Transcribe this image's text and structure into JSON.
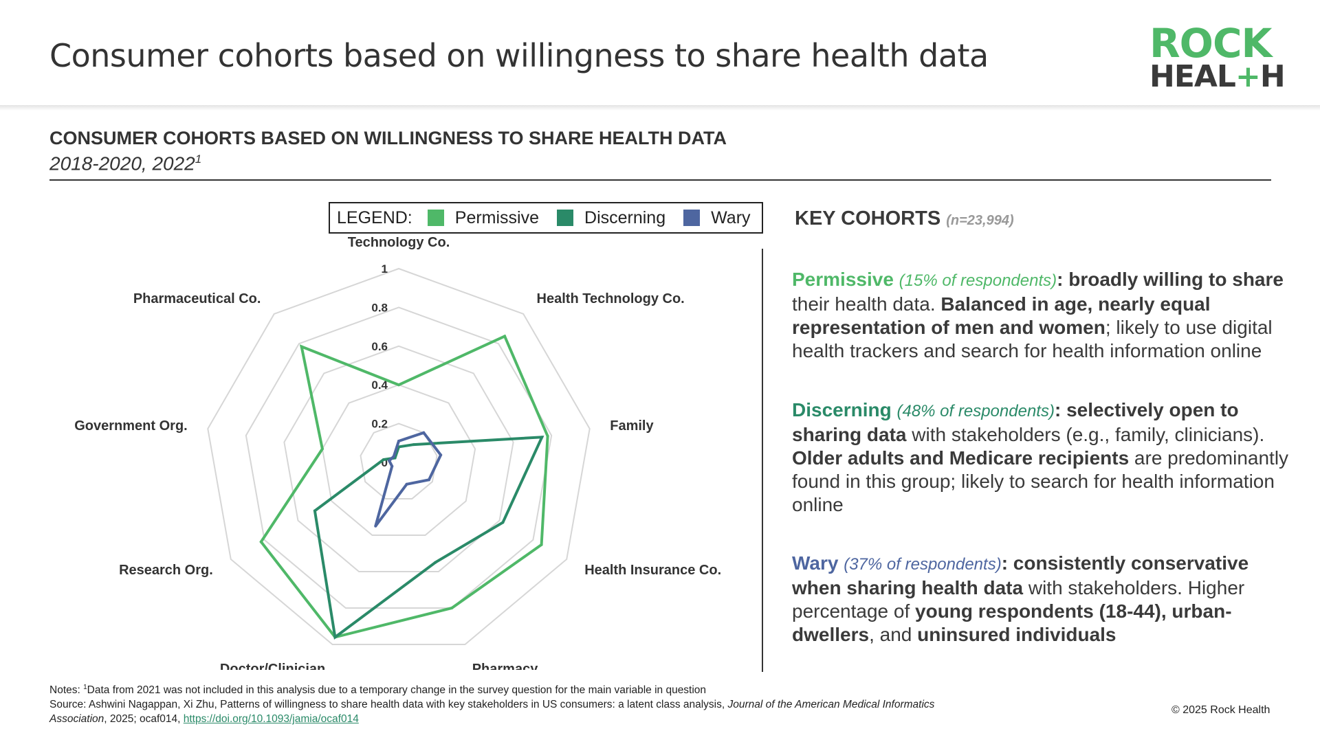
{
  "header": {
    "title": "Consumer cohorts based on willingness to share health data",
    "logo_line1": "ROCK",
    "logo_line2_a": "HEAL",
    "logo_line2_plus": "+",
    "logo_line2_b": "H"
  },
  "colors": {
    "permissive": "#4fb868",
    "discerning": "#2a8a68",
    "wary": "#4e66a0",
    "grid": "#d6d6d6"
  },
  "legend": {
    "title": "LEGEND:",
    "items": [
      "Permissive",
      "Discerning",
      "Wary"
    ]
  },
  "chart_data": {
    "type": "radar",
    "title": "CONSUMER COHORTS BASED ON WILLINGNESS TO SHARE HEALTH DATA",
    "subtitle": "2018-2020, 2022",
    "subtitle_sup": "1",
    "categories": [
      "Technology Co.",
      "Health Technology Co.",
      "Family",
      "Health Insurance Co.",
      "Pharmacy",
      "Doctor/Clinician",
      "Research Org.",
      "Government Org.",
      "Pharmaceutical Co."
    ],
    "rlim": [
      0,
      1
    ],
    "ticks": [
      "0",
      "0.2",
      "0.4",
      "0.6",
      "0.8",
      "1"
    ],
    "tick_values": [
      0,
      0.2,
      0.4,
      0.6,
      0.8,
      1
    ],
    "grid": true,
    "legend_position": "top",
    "series": [
      {
        "name": "Permissive",
        "values": [
          0.4,
          0.85,
          0.78,
          0.85,
          0.8,
          0.96,
          0.82,
          0.4,
          0.78
        ]
      },
      {
        "name": "Discerning",
        "values": [
          0.08,
          0.12,
          0.75,
          0.62,
          0.55,
          0.96,
          0.5,
          0.08,
          0.03
        ]
      },
      {
        "name": "Wary",
        "values": [
          0.11,
          0.2,
          0.22,
          0.18,
          0.12,
          0.35,
          0.04,
          0.05,
          0.04
        ]
      }
    ]
  },
  "key": {
    "title": "KEY COHORTS",
    "n": "(n=23,994)"
  },
  "cohorts": {
    "permissive": {
      "name": "Permissive",
      "pct": "(15% of respondents)",
      "colon": ":",
      "b1": "broadly willing to share",
      "t1": " their health data. ",
      "b2": "Balanced in age, nearly equal representation of men and women",
      "t2": "; likely to use digital health trackers and search for health information online"
    },
    "discerning": {
      "name": "Discerning",
      "pct": "(48% of respondents)",
      "colon": ":",
      "b1": "selectively open to sharing data",
      "t1": " with stakeholders (e.g., family, clinicians). ",
      "b2": "Older adults and Medicare recipients",
      "t2": " are predominantly found in this group; likely to search for health information online"
    },
    "wary": {
      "name": "Wary",
      "pct": "(37% of respondents)",
      "colon": ":",
      "b1": "consistently conservative when sharing health data",
      "t1": " with stakeholders. Higher percentage of ",
      "b2": "young respondents (18-44), urban-dwellers",
      "t2": ", and ",
      "b3": "uninsured individuals"
    }
  },
  "notes": {
    "line1_prefix": "Notes: ",
    "line1_sup": "1",
    "line1_text": "Data from 2021 was not included in this analysis due to a temporary change in the survey question for the main variable in question",
    "line2_text": "Source: Ashwini Nagappan, Xi Zhu, Patterns of willingness to share health data with key stakeholders in US consumers: a latent class analysis, ",
    "line2_journal": "Journal of the American Medical Informatics Association",
    "line2_rest": ", 2025; ocaf014, ",
    "link": "https://doi.org/10.1093/jamia/ocaf014"
  },
  "copyright": "© 2025 Rock Health"
}
